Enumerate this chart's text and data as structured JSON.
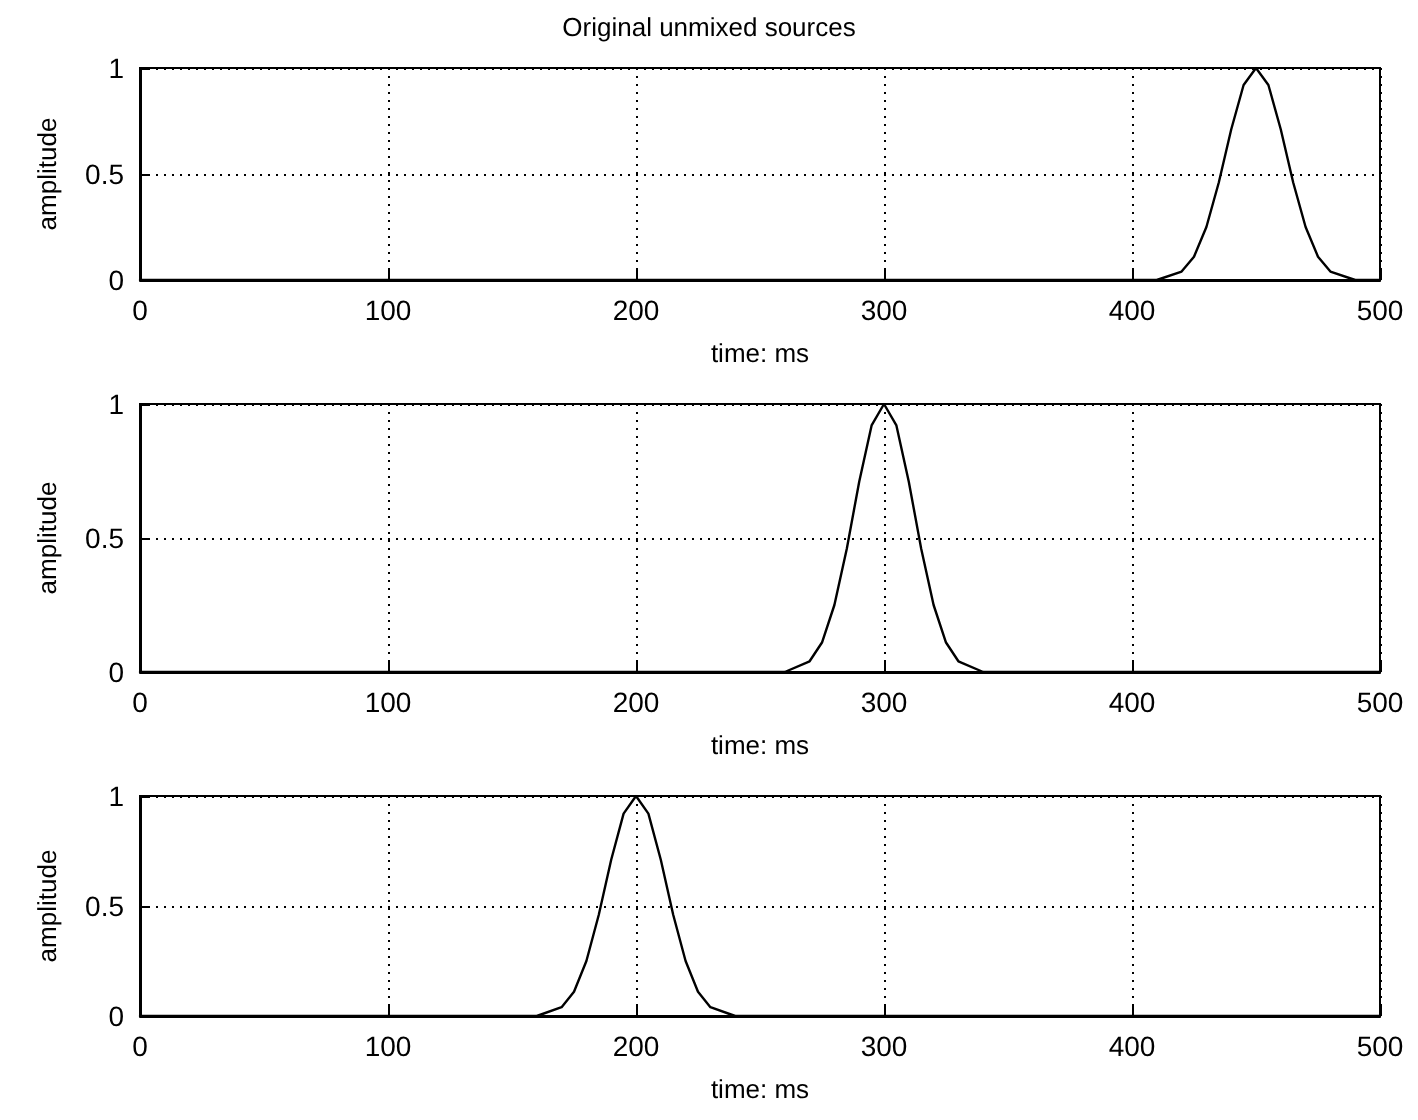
{
  "chart_data": [
    {
      "type": "line",
      "title": "Original unmixed sources",
      "xlabel": "time: ms",
      "ylabel": "amplitude",
      "xlim": [
        0,
        500
      ],
      "xticks": [
        0,
        100,
        200,
        300,
        400,
        500
      ],
      "ylim": [
        0,
        1
      ],
      "yticks": [
        0,
        0.5,
        1
      ],
      "grid": true,
      "marker": "none",
      "line_style": "solid",
      "series": [
        {
          "color": "#000000",
          "x": [
            0,
            410,
            420,
            425,
            430,
            435,
            440,
            445,
            450,
            455,
            460,
            465,
            470,
            475,
            480,
            490,
            500
          ],
          "values": [
            0,
            0,
            0.04,
            0.11,
            0.25,
            0.46,
            0.71,
            0.92,
            1,
            0.92,
            0.71,
            0.46,
            0.25,
            0.11,
            0.04,
            0,
            0
          ]
        }
      ]
    },
    {
      "type": "line",
      "xlabel": "time: ms",
      "ylabel": "amplitude",
      "xlim": [
        0,
        500
      ],
      "xticks": [
        0,
        100,
        200,
        300,
        400,
        500
      ],
      "ylim": [
        0,
        1
      ],
      "yticks": [
        0,
        0.5,
        1
      ],
      "grid": true,
      "marker": "none",
      "line_style": "solid",
      "series": [
        {
          "color": "#000000",
          "x": [
            0,
            260,
            270,
            275,
            280,
            285,
            290,
            295,
            300,
            305,
            310,
            315,
            320,
            325,
            330,
            340,
            500
          ],
          "values": [
            0,
            0,
            0.04,
            0.11,
            0.25,
            0.46,
            0.71,
            0.92,
            1,
            0.92,
            0.71,
            0.46,
            0.25,
            0.11,
            0.04,
            0,
            0
          ]
        }
      ]
    },
    {
      "type": "line",
      "xlabel": "time: ms",
      "ylabel": "amplitude",
      "xlim": [
        0,
        500
      ],
      "xticks": [
        0,
        100,
        200,
        300,
        400,
        500
      ],
      "ylim": [
        0,
        1
      ],
      "yticks": [
        0,
        0.5,
        1
      ],
      "grid": true,
      "marker": "none",
      "line_style": "solid",
      "series": [
        {
          "color": "#000000",
          "x": [
            0,
            160,
            170,
            175,
            180,
            185,
            190,
            195,
            200,
            205,
            210,
            215,
            220,
            225,
            230,
            240,
            500
          ],
          "values": [
            0,
            0,
            0.04,
            0.11,
            0.25,
            0.46,
            0.71,
            0.92,
            1,
            0.92,
            0.71,
            0.46,
            0.25,
            0.11,
            0.04,
            0,
            0
          ]
        }
      ]
    }
  ]
}
